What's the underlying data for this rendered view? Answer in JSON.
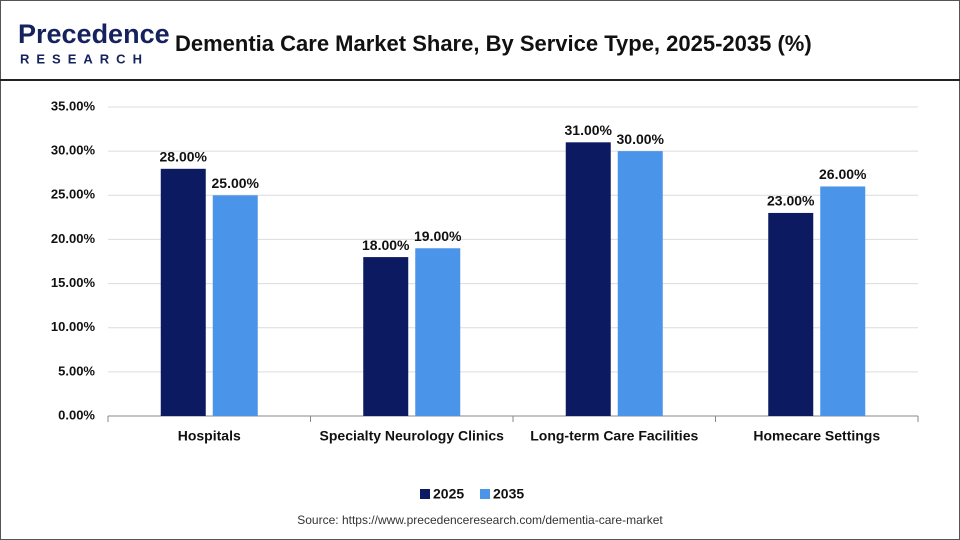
{
  "logo": {
    "name": "Precedence",
    "tagline": "RESEARCH"
  },
  "chart_data": {
    "type": "bar",
    "title": "Dementia Care Market Share, By Service Type, 2025-2035 (%)",
    "categories": [
      "Hospitals",
      "Specialty Neurology Clinics",
      "Long-term Care Facilities",
      "Homecare Settings"
    ],
    "series": [
      {
        "name": "2025",
        "color": "#0c1a62",
        "values": [
          28,
          18,
          31,
          23
        ],
        "value_labels": [
          "28.00%",
          "18.00%",
          "31.00%",
          "23.00%"
        ]
      },
      {
        "name": "2035",
        "color": "#4a94e9",
        "values": [
          25,
          19,
          30,
          26
        ],
        "value_labels": [
          "25.00%",
          "19.00%",
          "30.00%",
          "26.00%"
        ]
      }
    ],
    "ylim": [
      0,
      35
    ],
    "yticks": [
      {
        "value": 0,
        "label": "0.00%"
      },
      {
        "value": 5,
        "label": "5.00%"
      },
      {
        "value": 10,
        "label": "10.00%"
      },
      {
        "value": 15,
        "label": "15.00%"
      },
      {
        "value": 20,
        "label": "20.00%"
      },
      {
        "value": 25,
        "label": "25.00%"
      },
      {
        "value": 30,
        "label": "30.00%"
      },
      {
        "value": 35,
        "label": "35.00%"
      }
    ],
    "grid": true,
    "legend": "bottom",
    "source": "Source: https://www.precedenceresearch.com/dementia-care-market"
  }
}
